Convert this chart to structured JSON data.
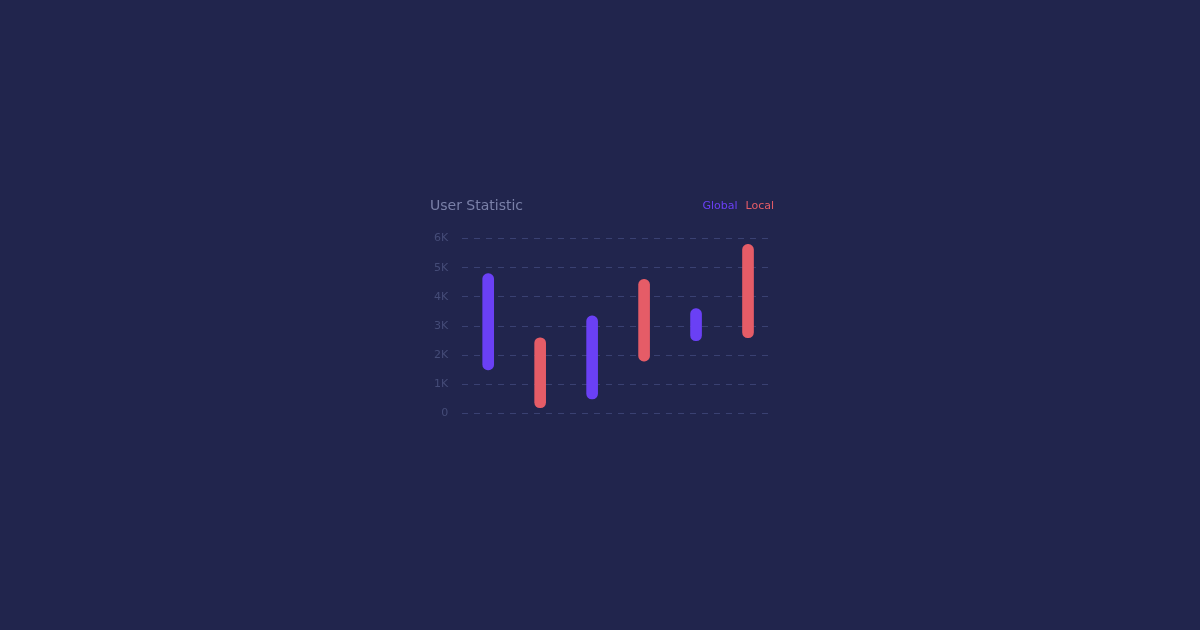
{
  "chart_data": {
    "type": "bar",
    "title": "User Statistic",
    "categories": [
      null,
      null,
      null,
      null,
      null,
      null
    ],
    "series": [
      {
        "name": "Global",
        "color": "#6a40f5",
        "base": [
          1500,
          null,
          500,
          null,
          2500,
          null
        ],
        "values": [
          3300,
          null,
          2850,
          null,
          1100,
          null
        ]
      },
      {
        "name": "Local",
        "color": "#e55c67",
        "base": [
          null,
          200,
          null,
          1800,
          null,
          2600
        ],
        "values": [
          null,
          2400,
          null,
          2800,
          null,
          3200
        ]
      }
    ],
    "ylim": [
      0,
      6000
    ],
    "yticks": [
      0,
      {
        "value": 1000,
        "label": "1K"
      },
      {
        "value": 2000,
        "label": "2K"
      },
      {
        "value": 3000,
        "label": "3K"
      },
      {
        "value": 4000,
        "label": "4K"
      },
      {
        "value": 5000,
        "label": "5K"
      },
      {
        "value": 6000,
        "label": "6K"
      }
    ],
    "grid": "y",
    "legend": "top right"
  }
}
